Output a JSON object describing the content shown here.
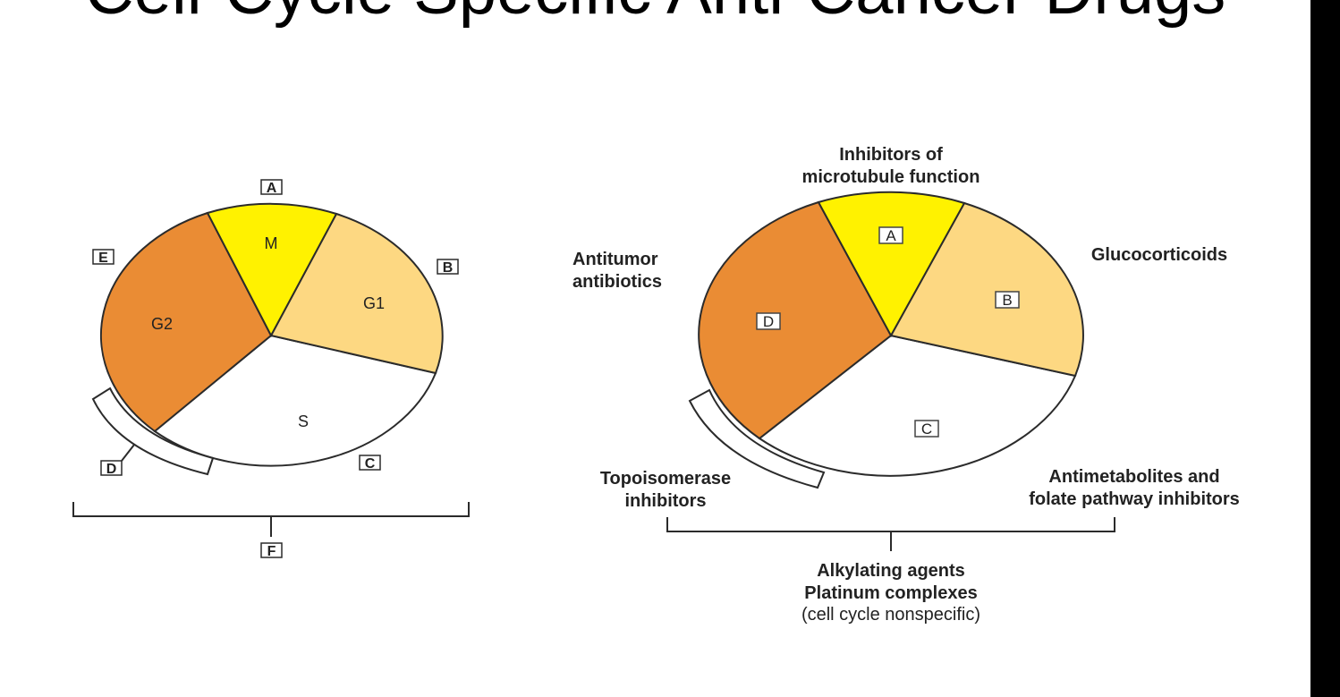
{
  "slide": {
    "title": "Cell-Cycle Specific Anti-Cancer Drugs"
  },
  "left_diagram": {
    "phases": {
      "M": "M",
      "G1": "G1",
      "S": "S",
      "G2": "G2"
    },
    "box_labels": {
      "A": "A",
      "B": "B",
      "C": "C",
      "D": "D",
      "E": "E",
      "F": "F"
    }
  },
  "right_diagram": {
    "box_labels": {
      "A": "A",
      "B": "B",
      "C": "C",
      "D": "D"
    },
    "annotations": {
      "microtubule_line1": "Inhibitors of",
      "microtubule_line2": "microtubule function",
      "glucocorticoids": "Glucocorticoids",
      "antitumor_line1": "Antitumor",
      "antitumor_line2": "antibiotics",
      "topo_line1": "Topoisomerase",
      "topo_line2": "inhibitors",
      "antimet_line1": "Antimetabolites and",
      "antimet_line2": "folate pathway inhibitors",
      "alkylating": "Alkylating agents",
      "platinum": "Platinum complexes",
      "nonspecific": "(cell cycle nonspecific)"
    }
  },
  "colors": {
    "M": "#fff200",
    "G1": "#fdd882",
    "S": "#ffffff",
    "G2": "#ea8c34",
    "outline": "#2b2b2b"
  }
}
